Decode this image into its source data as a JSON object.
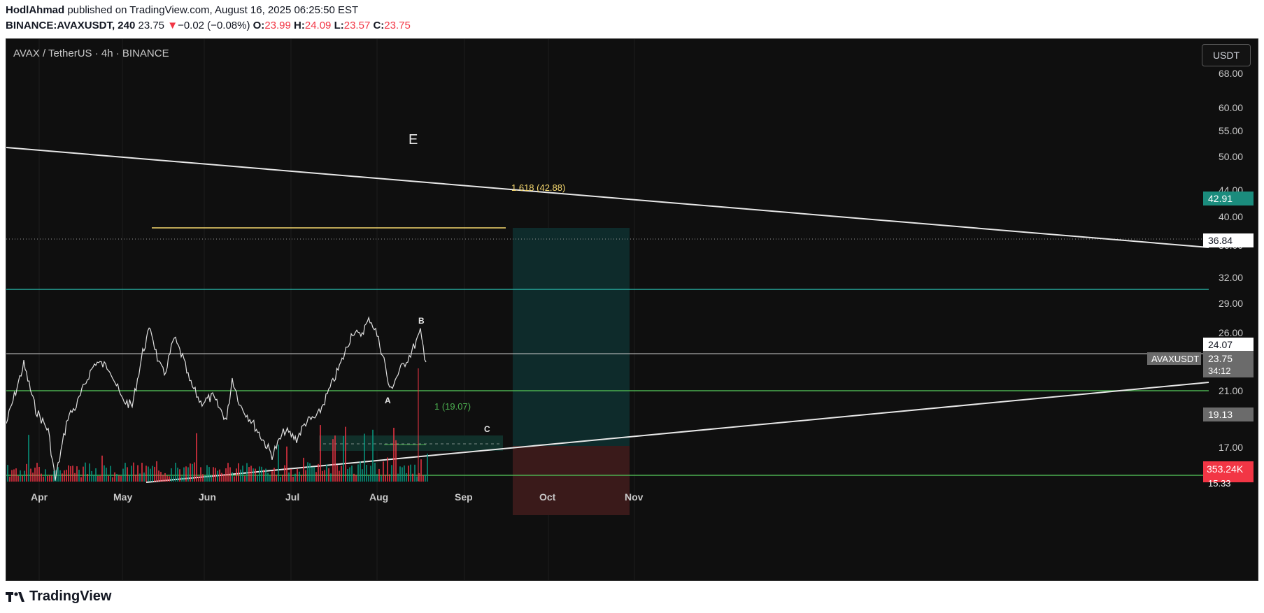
{
  "header": {
    "author": "HodlAhmad",
    "published_text": " published on TradingView.com, August 16, 2025 06:25:50 EST",
    "symbol_line": "BINANCE:AVAXUSDT, 240",
    "last": "23.75",
    "change_arrow": "▼",
    "change": "−0.02 (−0.08%)",
    "o_label": "O:",
    "o_value": "23.99",
    "h_label": "H:",
    "h_value": "24.09",
    "l_label": "L:",
    "l_value": "23.57",
    "c_label": "C:",
    "c_value": "23.75"
  },
  "chart": {
    "title": "AVAX / TetherUS · 4h · BINANCE",
    "currency_button": "USDT",
    "price_ticks": [
      "68.00",
      "60.00",
      "55.00",
      "50.00",
      "44.00",
      "40.00",
      "36.00",
      "32.00",
      "29.00",
      "26.00",
      "21.00",
      "17.00",
      "15.33"
    ],
    "time_ticks": [
      "Apr",
      "May",
      "Jun",
      "Jul",
      "Aug",
      "Sep",
      "Oct",
      "Nov"
    ],
    "labels": {
      "wave_e": "E",
      "wave_b": "B",
      "wave_a": "A",
      "wave_c": "C",
      "fib_1618": "1.618 (42.88)",
      "fib_1": "1 (19.07)"
    },
    "badges": {
      "target": "42.91",
      "dotted_level": "36.84",
      "hline": "24.07",
      "symbol": "AVAXUSDT",
      "last_price": "23.75",
      "countdown": "34:12",
      "stop": "19.13",
      "volume": "353.24K"
    },
    "colors": {
      "background": "#0f0f0f",
      "bull": "#089981",
      "bear": "#f23645",
      "fib_yellow": "#f5d76e",
      "green_line": "#4caf50",
      "teal_line": "#26a69a",
      "target_zone": "#0e2b2b",
      "stop_zone": "#3a1a1a"
    }
  },
  "branding": {
    "logo_icon": "tradingview-logo-icon",
    "name": "TradingView"
  }
}
